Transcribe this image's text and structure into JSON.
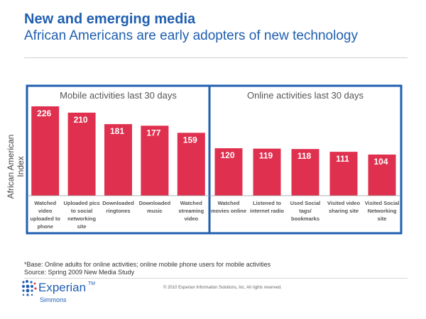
{
  "header": {
    "title": "New and emerging media",
    "subtitle": "African Americans are early adopters of new technology"
  },
  "footer": {
    "base_note": "*Base: Online adults for online activities; online mobile phone users for mobile activities",
    "source": "Source: Spring 2009 New Media Study",
    "copyright": "© 2010 Experian Information Solutions, Inc.  All rights reserved.",
    "logo_name": "Experian",
    "logo_tm": "TM",
    "logo_sub": "Simmons"
  },
  "colors": {
    "bar": "#e0304f",
    "frame": "#1f5fb0",
    "title": "#1f5fb0"
  },
  "chart_data": {
    "type": "bar",
    "ylabel": "African American Index",
    "groups": [
      {
        "title": "Mobile activities last 30 days",
        "categories": [
          "Watched video uploaded to phone",
          "Uploaded pics to social networking site",
          "Downloaded ringtones",
          "Downloaded music",
          "Watched streaming video"
        ],
        "values": [
          226,
          210,
          181,
          177,
          159
        ]
      },
      {
        "title": "Online activities last 30 days",
        "categories": [
          "Watched movies online",
          "Listened to internet radio",
          "Used Social tags/ bookmarks",
          "Visited video sharing site",
          "Visited Social Networking site"
        ],
        "values": [
          120,
          119,
          118,
          111,
          104
        ]
      }
    ],
    "label_lines": [
      [
        "Watched",
        "video",
        "uploaded to",
        "phone"
      ],
      [
        "Uploaded pics",
        "to social",
        "networking",
        "site"
      ],
      [
        "Downloaded",
        "ringtones"
      ],
      [
        "Downloaded",
        "music"
      ],
      [
        "Watched",
        "streaming",
        "video"
      ],
      [
        "Watched",
        "movies online"
      ],
      [
        "Listened to",
        "internet radio"
      ],
      [
        "Used Social",
        "tags/",
        "bookmarks"
      ],
      [
        "Visited video",
        "sharing site"
      ],
      [
        "Visited Social",
        "Networking",
        "site"
      ]
    ],
    "ylim": [
      0,
      240
    ],
    "grid": false
  }
}
